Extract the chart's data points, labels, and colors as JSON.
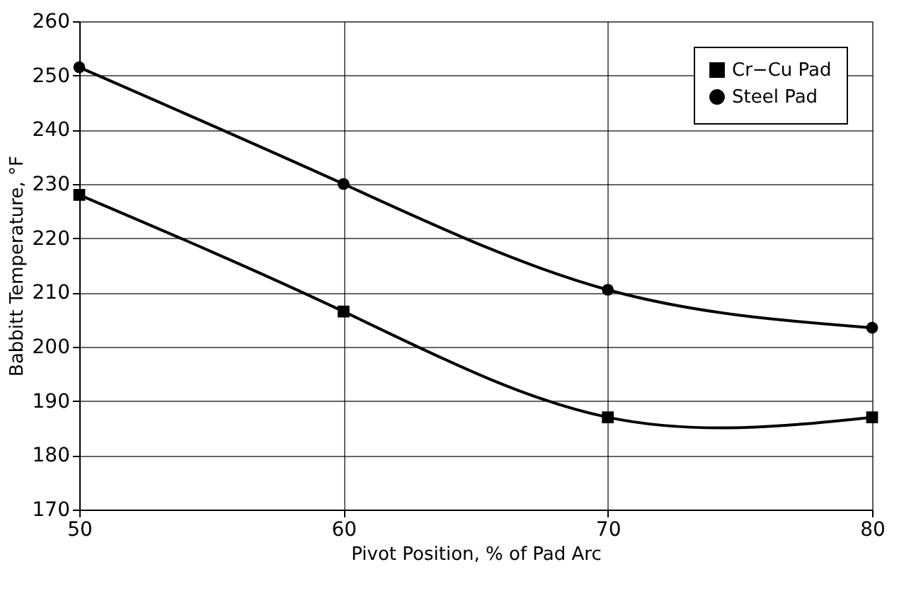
{
  "chart_data": {
    "type": "line",
    "xlabel": "Pivot Position, % of Pad Arc",
    "ylabel": "Babbitt Temperature, °F",
    "x": [
      50,
      60,
      70,
      80
    ],
    "xlim": [
      50,
      80
    ],
    "xticks": [
      50,
      60,
      70,
      80
    ],
    "ylim": [
      170,
      260
    ],
    "yticks": [
      170,
      180,
      190,
      200,
      210,
      220,
      230,
      240,
      250,
      260
    ],
    "grid": true,
    "legend": "top right",
    "line_style": "solid",
    "series": [
      {
        "name": "Cr−Cu Pad",
        "color": "#000000",
        "marker": "square",
        "values": [
          228,
          206.5,
          187,
          187
        ]
      },
      {
        "name": "Steel Pad",
        "color": "#000000",
        "marker": "circle",
        "values": [
          251.5,
          230,
          210.5,
          203.5
        ]
      }
    ]
  }
}
